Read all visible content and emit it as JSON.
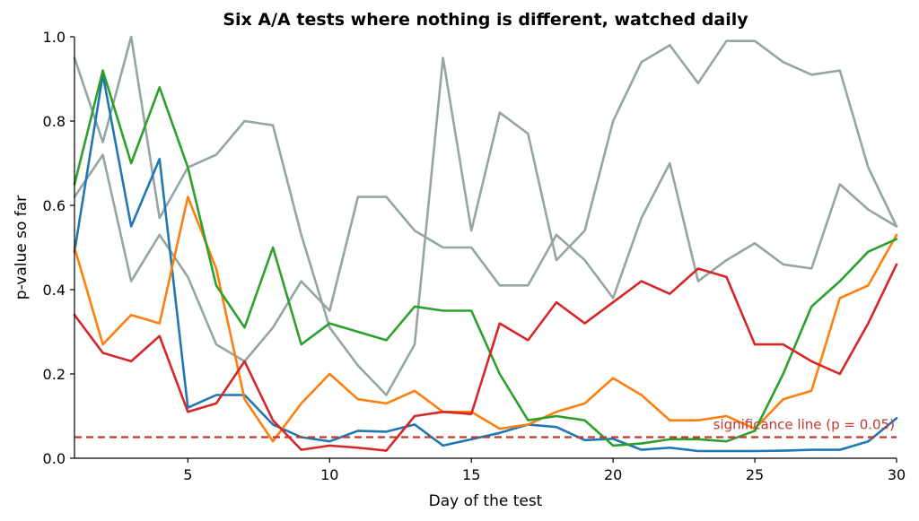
{
  "chart_data": {
    "type": "line",
    "title": "Six A/A tests where nothing is different, watched daily",
    "xlabel": "Day of the test",
    "ylabel": "p-value so far",
    "xlim": [
      1,
      30
    ],
    "ylim": [
      0,
      1
    ],
    "xticks": [
      5,
      10,
      15,
      20,
      25,
      30
    ],
    "yticks": [
      0.0,
      0.2,
      0.4,
      0.6,
      0.8,
      1.0
    ],
    "xtick_labels": [
      "5",
      "10",
      "15",
      "20",
      "25",
      "30"
    ],
    "ytick_labels": [
      "0.0",
      "0.2",
      "0.4",
      "0.6",
      "0.8",
      "1.0"
    ],
    "grid": false,
    "x": [
      1,
      2,
      3,
      4,
      5,
      6,
      7,
      8,
      9,
      10,
      11,
      12,
      13,
      14,
      15,
      16,
      17,
      18,
      19,
      20,
      21,
      22,
      23,
      24,
      25,
      26,
      27,
      28,
      29,
      30
    ],
    "series": [
      {
        "color": "#95a5a6",
        "values": [
          0.95,
          0.75,
          1.0,
          0.57,
          0.69,
          0.72,
          0.8,
          0.79,
          0.53,
          0.31,
          0.22,
          0.15,
          0.27,
          0.95,
          0.54,
          0.82,
          0.77,
          0.47,
          0.54,
          0.8,
          0.94,
          0.98,
          0.89,
          0.99,
          0.99,
          0.94,
          0.91,
          0.92,
          0.69,
          0.55
        ]
      },
      {
        "color": "#95a5a6",
        "values": [
          0.62,
          0.72,
          0.42,
          0.53,
          0.43,
          0.27,
          0.23,
          0.31,
          0.42,
          0.35,
          0.62,
          0.62,
          0.54,
          0.5,
          0.5,
          0.41,
          0.41,
          0.53,
          0.47,
          0.38,
          0.57,
          0.7,
          0.42,
          0.47,
          0.51,
          0.46,
          0.45,
          0.65,
          0.59,
          0.55
        ]
      },
      {
        "color": "#1f77b4",
        "values": [
          0.49,
          0.91,
          0.55,
          0.71,
          0.12,
          0.15,
          0.15,
          0.08,
          0.05,
          0.04,
          0.065,
          0.063,
          0.08,
          0.03,
          0.045,
          0.06,
          0.08,
          0.074,
          0.043,
          0.046,
          0.02,
          0.025,
          0.017,
          0.017,
          0.017,
          0.018,
          0.02,
          0.02,
          0.04,
          0.095
        ]
      },
      {
        "color": "#ff7f0e",
        "values": [
          0.5,
          0.27,
          0.34,
          0.32,
          0.62,
          0.45,
          0.14,
          0.04,
          0.13,
          0.2,
          0.14,
          0.13,
          0.16,
          0.11,
          0.11,
          0.07,
          0.08,
          0.11,
          0.13,
          0.19,
          0.15,
          0.09,
          0.09,
          0.1,
          0.07,
          0.14,
          0.16,
          0.38,
          0.41,
          0.53
        ]
      },
      {
        "color": "#2ca02c",
        "values": [
          0.65,
          0.92,
          0.7,
          0.88,
          0.69,
          0.41,
          0.31,
          0.5,
          0.27,
          0.32,
          0.3,
          0.28,
          0.36,
          0.35,
          0.35,
          0.2,
          0.09,
          0.1,
          0.09,
          0.03,
          0.035,
          0.045,
          0.045,
          0.04,
          0.065,
          0.2,
          0.36,
          0.42,
          0.49,
          0.52
        ]
      },
      {
        "color": "#d62728",
        "values": [
          0.34,
          0.25,
          0.23,
          0.29,
          0.11,
          0.13,
          0.23,
          0.09,
          0.02,
          0.03,
          0.025,
          0.018,
          0.1,
          0.11,
          0.105,
          0.32,
          0.28,
          0.37,
          0.32,
          0.37,
          0.42,
          0.39,
          0.45,
          0.43,
          0.27,
          0.27,
          0.23,
          0.2,
          0.32,
          0.46
        ]
      }
    ],
    "reference_line": {
      "y": 0.05,
      "color": "#c0392b",
      "style": "dashed",
      "label": "significance line (p = 0.05)"
    }
  }
}
